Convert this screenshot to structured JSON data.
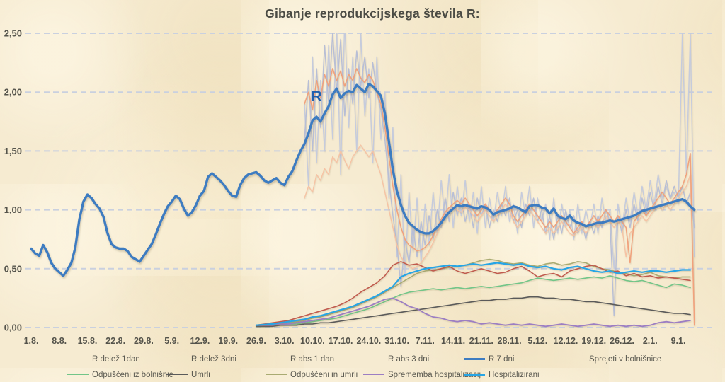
{
  "chart_data": {
    "type": "line",
    "title": "Gibanje reprodukcijskega števila R:",
    "annotation": {
      "text": "R",
      "day": 71,
      "value": 1.97
    },
    "y_axis": {
      "min": 0,
      "max": 2.5,
      "grid": "dashed",
      "ticks": [
        {
          "v": 0.0,
          "label": "0,00"
        },
        {
          "v": 0.5,
          "label": "0,50"
        },
        {
          "v": 1.0,
          "label": "1,00"
        },
        {
          "v": 1.5,
          "label": "1,50"
        },
        {
          "v": 2.0,
          "label": "2,00"
        },
        {
          "v": 2.5,
          "label": "2,50"
        }
      ]
    },
    "x_axis": {
      "unit": "day-index from 1.8.",
      "ticks": [
        {
          "day": 0,
          "label": "1.8."
        },
        {
          "day": 7,
          "label": "8.8."
        },
        {
          "day": 14,
          "label": "15.8."
        },
        {
          "day": 21,
          "label": "22.8."
        },
        {
          "day": 28,
          "label": "29.8."
        },
        {
          "day": 35,
          "label": "5.9."
        },
        {
          "day": 42,
          "label": "12.9."
        },
        {
          "day": 49,
          "label": "19.9."
        },
        {
          "day": 56,
          "label": "26.9."
        },
        {
          "day": 63,
          "label": "3.10."
        },
        {
          "day": 70,
          "label": "10.10."
        },
        {
          "day": 77,
          "label": "17.10."
        },
        {
          "day": 84,
          "label": "24.10."
        },
        {
          "day": 91,
          "label": "31.10."
        },
        {
          "day": 98,
          "label": "7.11."
        },
        {
          "day": 105,
          "label": "14.11."
        },
        {
          "day": 112,
          "label": "21.11."
        },
        {
          "day": 119,
          "label": "28.11."
        },
        {
          "day": 126,
          "label": "5.12."
        },
        {
          "day": 133,
          "label": "12.12."
        },
        {
          "day": 140,
          "label": "19.12."
        },
        {
          "day": 147,
          "label": "26.12."
        },
        {
          "day": 154,
          "label": "2.1."
        },
        {
          "day": 161,
          "label": "9.1."
        }
      ]
    },
    "legend": {
      "rows": [
        [
          0,
          1,
          2,
          3,
          4,
          5
        ],
        [
          6,
          7,
          8,
          9,
          10
        ]
      ]
    },
    "draw_order": [
      2,
      0,
      3,
      1,
      8,
      5,
      6,
      7,
      9,
      10,
      4
    ],
    "series": [
      {
        "label": "R delež 1dan",
        "color": "#b7bed6",
        "width": 1.4,
        "start_day": 68,
        "step": 1,
        "values": [
          1.6,
          2.1,
          1.5,
          2.2,
          1.7,
          2.4,
          1.9,
          2.5,
          2.0,
          2.45,
          1.8,
          2.2,
          1.9,
          2.35,
          2.05,
          2.3,
          1.95,
          2.25,
          2.0,
          1.85,
          1.6,
          1.25,
          0.95,
          0.7,
          0.35,
          0.75,
          0.55,
          0.85,
          0.6,
          0.9,
          0.7,
          0.95,
          0.75,
          1.0,
          0.85,
          1.1,
          0.9,
          1.15,
          0.95,
          1.1,
          0.9,
          1.05,
          0.85,
          1.1,
          0.95,
          1.05,
          0.85,
          1.0,
          0.9,
          1.05,
          0.95,
          1.1,
          0.9,
          1.0,
          0.85,
          1.05,
          0.95,
          1.1,
          0.9,
          1.0,
          0.8,
          0.95,
          0.75,
          0.95,
          0.8,
          1.0,
          0.85,
          0.95,
          0.8,
          0.9,
          0.75,
          0.9,
          0.8,
          0.95,
          0.85,
          1.0,
          0.9,
          0.1,
          0.95,
          0.8,
          1.0,
          0.85,
          1.05,
          0.9,
          1.1,
          0.95,
          1.15,
          1.0,
          1.2,
          1.05,
          1.25,
          1.1,
          1.2,
          1.1,
          1.2,
          1.05,
          1.15,
          0.85
        ]
      },
      {
        "label": "R delež 3dni",
        "color": "#f1a17c",
        "width": 1.5,
        "start_day": 68,
        "step": 1,
        "values": [
          1.9,
          2.0,
          1.85,
          2.1,
          1.95,
          2.15,
          2.05,
          2.2,
          2.1,
          2.18,
          2.05,
          2.15,
          2.1,
          2.2,
          2.12,
          2.08,
          2.15,
          2.1,
          2.0,
          1.9,
          1.7,
          1.45,
          1.2,
          1.0,
          0.85,
          0.75,
          0.7,
          0.68,
          0.65,
          0.66,
          0.68,
          0.72,
          0.78,
          0.85,
          0.92,
          0.98,
          1.02,
          1.05,
          1.08,
          1.05,
          1.1,
          1.05,
          1.0,
          0.95,
          1.0,
          1.05,
          1.0,
          0.95,
          1.0,
          1.05,
          1.1,
          1.05,
          0.95,
          0.9,
          0.95,
          1.0,
          1.05,
          1.0,
          0.95,
          0.9,
          0.85,
          0.9,
          0.85,
          0.9,
          0.95,
          0.9,
          0.85,
          0.8,
          0.85,
          0.9,
          0.85,
          0.9,
          0.95,
          0.9,
          0.95,
          1.0,
          0.95,
          0.9,
          0.95,
          0.9,
          0.85,
          0.55,
          0.9,
          0.95,
          1.0,
          0.95,
          1.0,
          1.05,
          1.1,
          1.15,
          1.1,
          1.05,
          1.1,
          1.15,
          1.2,
          1.3,
          1.48,
          0.02
        ]
      },
      {
        "label": "R abs 1 dan",
        "color": "#c5cbdd",
        "width": 1.4,
        "start_day": 68,
        "step": 1,
        "values": [
          1.9,
          1.2,
          2.3,
          1.4,
          2.1,
          1.5,
          2.4,
          1.6,
          2.55,
          1.3,
          2.6,
          1.7,
          2.3,
          1.5,
          2.5,
          1.8,
          2.2,
          1.4,
          2.3,
          1.6,
          2.0,
          1.1,
          1.7,
          0.6,
          1.3,
          0.45,
          1.15,
          0.65,
          1.1,
          0.55,
          1.05,
          0.7,
          1.15,
          0.8,
          1.25,
          0.9,
          1.3,
          0.85,
          1.2,
          0.95,
          1.25,
          0.9,
          1.15,
          0.8,
          1.2,
          0.85,
          1.1,
          0.9,
          1.15,
          0.95,
          1.2,
          0.9,
          1.05,
          0.8,
          1.15,
          0.95,
          1.2,
          0.85,
          1.1,
          0.9,
          1.05,
          0.75,
          1.1,
          0.8,
          1.05,
          0.85,
          1.0,
          0.75,
          1.05,
          0.8,
          1.0,
          0.85,
          1.05,
          0.8,
          1.1,
          0.9,
          1.0,
          0.5,
          1.05,
          0.85,
          1.1,
          0.9,
          1.15,
          0.95,
          1.2,
          1.0,
          1.25,
          1.05,
          1.3,
          1.1,
          1.2,
          1.1,
          1.15,
          1.05,
          2.5,
          1.3,
          2.5,
          0.6
        ]
      },
      {
        "label": "R abs 3 dni",
        "color": "#f6c3a4",
        "width": 1.4,
        "start_day": 68,
        "step": 1,
        "values": [
          1.1,
          1.2,
          1.15,
          1.3,
          1.25,
          1.35,
          1.3,
          1.45,
          1.4,
          1.5,
          1.42,
          1.35,
          1.45,
          1.5,
          1.55,
          1.5,
          1.45,
          1.5,
          1.4,
          1.3,
          1.15,
          1.0,
          0.85,
          0.7,
          0.6,
          0.55,
          0.52,
          0.5,
          0.52,
          0.55,
          0.6,
          0.65,
          0.72,
          0.8,
          0.88,
          0.95,
          1.0,
          1.02,
          1.0,
          0.98,
          1.02,
          1.0,
          0.95,
          0.9,
          0.95,
          1.0,
          0.95,
          0.9,
          0.95,
          1.0,
          1.05,
          1.0,
          0.9,
          0.85,
          0.9,
          0.95,
          1.0,
          0.95,
          0.9,
          0.85,
          0.8,
          0.85,
          0.8,
          0.85,
          0.9,
          0.85,
          0.8,
          0.78,
          0.82,
          0.85,
          0.8,
          0.85,
          0.9,
          0.85,
          0.9,
          0.95,
          0.9,
          0.85,
          0.9,
          0.85,
          0.6,
          0.8,
          0.85,
          0.9,
          0.95,
          0.9,
          0.95,
          1.0,
          1.05,
          1.0,
          1.05,
          1.0,
          1.05,
          1.1,
          1.15,
          1.2,
          1.3,
          0.05
        ]
      },
      {
        "label": "R 7 dni",
        "color": "#3e7cc1",
        "width": 3.4,
        "start_day": 0,
        "step": 1,
        "values": [
          0.67,
          0.63,
          0.61,
          0.7,
          0.64,
          0.55,
          0.5,
          0.47,
          0.44,
          0.49,
          0.55,
          0.68,
          0.92,
          1.07,
          1.13,
          1.1,
          1.05,
          1.01,
          0.94,
          0.8,
          0.71,
          0.68,
          0.67,
          0.67,
          0.65,
          0.6,
          0.58,
          0.56,
          0.61,
          0.66,
          0.71,
          0.79,
          0.88,
          0.96,
          1.03,
          1.07,
          1.12,
          1.09,
          1.01,
          0.95,
          0.98,
          1.04,
          1.12,
          1.16,
          1.28,
          1.31,
          1.28,
          1.25,
          1.21,
          1.16,
          1.12,
          1.11,
          1.21,
          1.27,
          1.3,
          1.31,
          1.32,
          1.29,
          1.25,
          1.23,
          1.25,
          1.27,
          1.23,
          1.21,
          1.28,
          1.33,
          1.42,
          1.5,
          1.56,
          1.65,
          1.76,
          1.79,
          1.75,
          1.82,
          1.88,
          1.98,
          2.03,
          1.95,
          1.99,
          2.01,
          2.0,
          2.06,
          2.03,
          2.0,
          2.07,
          2.05,
          2.01,
          1.97,
          1.82,
          1.58,
          1.34,
          1.16,
          1.04,
          0.95,
          0.89,
          0.86,
          0.83,
          0.81,
          0.8,
          0.8,
          0.82,
          0.85,
          0.89,
          0.94,
          0.98,
          1.01,
          1.04,
          1.03,
          1.04,
          1.03,
          1.02,
          1.01,
          1.03,
          1.02,
          1.0,
          0.96,
          0.98,
          0.99,
          1.0,
          1.01,
          1.03,
          1.02,
          1.0,
          0.98,
          1.03,
          1.04,
          1.04,
          1.02,
          1.01,
          0.97,
          1.01,
          0.95,
          0.93,
          0.92,
          0.95,
          0.91,
          0.89,
          0.88,
          0.86,
          0.87,
          0.88,
          0.89,
          0.89,
          0.9,
          0.91,
          0.9,
          0.91,
          0.92,
          0.93,
          0.94,
          0.95,
          0.97,
          0.99,
          1.0,
          1.01,
          1.02,
          1.03,
          1.04,
          1.05,
          1.06,
          1.07,
          1.08,
          1.09,
          1.07,
          1.03,
          1.0
        ]
      },
      {
        "label": "Sprejeti v bolnišnice",
        "color": "#c05a4e",
        "width": 1.6,
        "start_day": 56,
        "step": 2,
        "values": [
          0.02,
          0.03,
          0.04,
          0.05,
          0.06,
          0.08,
          0.1,
          0.12,
          0.14,
          0.16,
          0.18,
          0.21,
          0.25,
          0.3,
          0.34,
          0.38,
          0.44,
          0.53,
          0.56,
          0.53,
          0.54,
          0.51,
          0.48,
          0.5,
          0.52,
          0.48,
          0.46,
          0.48,
          0.5,
          0.48,
          0.46,
          0.47,
          0.5,
          0.52,
          0.48,
          0.43,
          0.45,
          0.46,
          0.43,
          0.48,
          0.5,
          0.52,
          0.53,
          0.5,
          0.47,
          0.48,
          0.44,
          0.46,
          0.43,
          0.44,
          0.42,
          0.43,
          0.42,
          0.41,
          0.4
        ]
      },
      {
        "label": "Odpuščeni iz bolnišnic",
        "color": "#72c588",
        "width": 1.6,
        "start_day": 56,
        "step": 2,
        "values": [
          0.01,
          0.01,
          0.02,
          0.02,
          0.03,
          0.03,
          0.04,
          0.05,
          0.06,
          0.07,
          0.08,
          0.1,
          0.12,
          0.14,
          0.16,
          0.19,
          0.22,
          0.25,
          0.28,
          0.3,
          0.31,
          0.32,
          0.33,
          0.32,
          0.33,
          0.34,
          0.33,
          0.34,
          0.35,
          0.34,
          0.35,
          0.36,
          0.37,
          0.38,
          0.4,
          0.42,
          0.41,
          0.4,
          0.41,
          0.42,
          0.41,
          0.42,
          0.43,
          0.42,
          0.44,
          0.42,
          0.4,
          0.39,
          0.4,
          0.38,
          0.36,
          0.34,
          0.37,
          0.36,
          0.34
        ]
      },
      {
        "label": "Umrli",
        "color": "#5a5a5a",
        "width": 1.6,
        "start_day": 56,
        "step": 2,
        "values": [
          0.01,
          0.01,
          0.01,
          0.02,
          0.02,
          0.02,
          0.03,
          0.03,
          0.04,
          0.04,
          0.05,
          0.06,
          0.07,
          0.08,
          0.09,
          0.1,
          0.11,
          0.12,
          0.13,
          0.14,
          0.15,
          0.16,
          0.17,
          0.18,
          0.19,
          0.2,
          0.21,
          0.22,
          0.23,
          0.23,
          0.24,
          0.24,
          0.25,
          0.25,
          0.26,
          0.26,
          0.25,
          0.25,
          0.24,
          0.24,
          0.23,
          0.22,
          0.22,
          0.21,
          0.2,
          0.19,
          0.18,
          0.17,
          0.16,
          0.15,
          0.14,
          0.13,
          0.12,
          0.12,
          0.11
        ]
      },
      {
        "label": "Odpuščeni in umrli",
        "color": "#a9ab72",
        "width": 1.6,
        "start_day": 56,
        "step": 2,
        "values": [
          0.02,
          0.02,
          0.03,
          0.03,
          0.04,
          0.05,
          0.06,
          0.08,
          0.09,
          0.11,
          0.13,
          0.15,
          0.17,
          0.2,
          0.23,
          0.26,
          0.3,
          0.34,
          0.38,
          0.42,
          0.46,
          0.48,
          0.49,
          0.5,
          0.51,
          0.52,
          0.53,
          0.55,
          0.57,
          0.58,
          0.57,
          0.55,
          0.54,
          0.55,
          0.53,
          0.52,
          0.54,
          0.55,
          0.53,
          0.54,
          0.56,
          0.55,
          0.52,
          0.5,
          0.49,
          0.47,
          0.46,
          0.44,
          0.45,
          0.47,
          0.44,
          0.43,
          0.42,
          0.43,
          0.43
        ]
      },
      {
        "label": "Sprememba hospitalizacij",
        "color": "#9c7ec3",
        "width": 1.8,
        "start_day": 56,
        "step": 2,
        "values": [
          0.02,
          0.02,
          0.02,
          0.03,
          0.03,
          0.04,
          0.05,
          0.06,
          0.07,
          0.08,
          0.1,
          0.12,
          0.14,
          0.16,
          0.18,
          0.21,
          0.24,
          0.25,
          0.22,
          0.18,
          0.16,
          0.12,
          0.09,
          0.08,
          0.06,
          0.05,
          0.06,
          0.05,
          0.03,
          0.04,
          0.03,
          0.02,
          0.03,
          0.02,
          0.03,
          0.02,
          0.01,
          0.02,
          0.03,
          0.02,
          0.01,
          0.02,
          0.03,
          0.02,
          0.01,
          0.02,
          0.01,
          0.02,
          0.01,
          0.02,
          0.04,
          0.05,
          0.04,
          0.05,
          0.06
        ]
      },
      {
        "label": "Hospitalizirani",
        "color": "#27a5e5",
        "width": 2.2,
        "start_day": 56,
        "step": 2,
        "values": [
          0.02,
          0.025,
          0.03,
          0.04,
          0.05,
          0.06,
          0.07,
          0.09,
          0.1,
          0.12,
          0.14,
          0.16,
          0.18,
          0.21,
          0.24,
          0.27,
          0.31,
          0.35,
          0.43,
          0.46,
          0.48,
          0.5,
          0.51,
          0.52,
          0.53,
          0.52,
          0.53,
          0.54,
          0.53,
          0.54,
          0.55,
          0.54,
          0.53,
          0.54,
          0.52,
          0.51,
          0.52,
          0.5,
          0.49,
          0.51,
          0.52,
          0.5,
          0.48,
          0.47,
          0.48,
          0.46,
          0.47,
          0.48,
          0.47,
          0.48,
          0.48,
          0.47,
          0.48,
          0.49,
          0.49
        ]
      }
    ]
  }
}
